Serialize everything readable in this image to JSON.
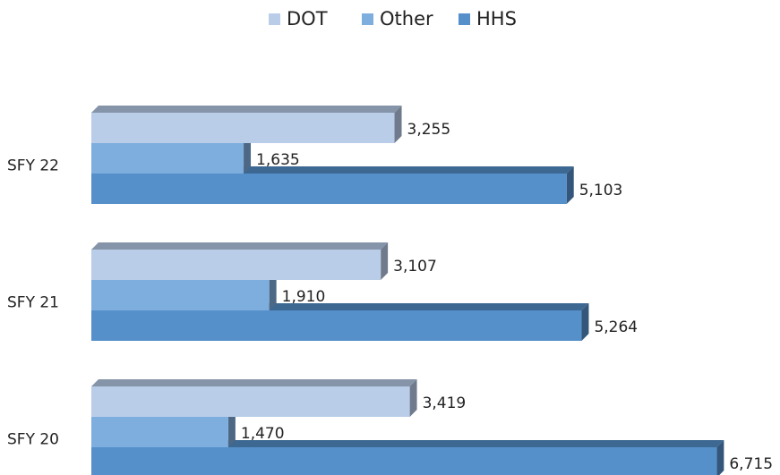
{
  "chart_data": {
    "type": "bar",
    "orientation": "horizontal",
    "style": "3d",
    "categories": [
      "SFY 22",
      "SFY 21",
      "SFY 20"
    ],
    "series": [
      {
        "name": "DOT",
        "color": "#b9cde9",
        "values": [
          3255,
          3107,
          3419
        ],
        "value_labels": [
          "3,255",
          "3,107",
          "3,419"
        ]
      },
      {
        "name": "Other",
        "color": "#7eaede",
        "values": [
          1635,
          1910,
          1470
        ],
        "value_labels": [
          "1,635",
          "1,910",
          "1,470"
        ]
      },
      {
        "name": "HHS",
        "color": "#5590cb",
        "values": [
          5103,
          5264,
          6715
        ],
        "value_labels": [
          "5,103",
          "5,264",
          "6,715"
        ]
      }
    ],
    "legend": "top"
  }
}
